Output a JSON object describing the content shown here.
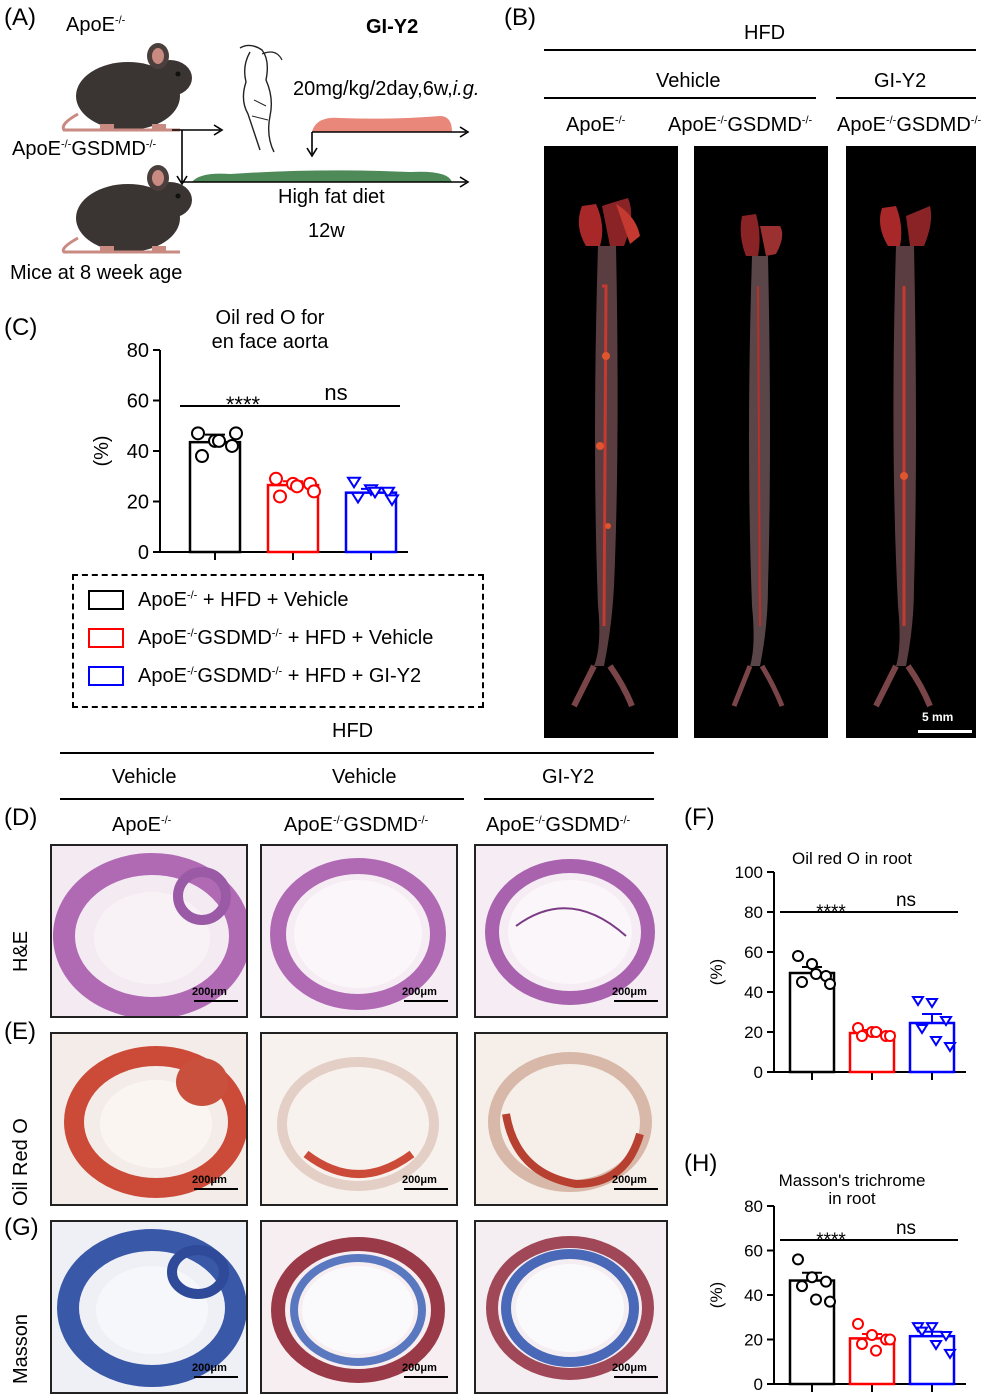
{
  "panels": {
    "A": {
      "label": "(A)",
      "mouse_top": "ApoE",
      "mouse_bottom": "ApoE",
      "mouse_bottom_gene": "GSDMD",
      "ko_sup": "-/-",
      "drug_name": "GI-Y2",
      "dosing": "20mg/kg/2day,6w,",
      "route": "i.g.",
      "diet": "High fat diet",
      "diet_duration": "12w",
      "age": "Mice at 8 week age",
      "colors": {
        "drug_bar": "#e8877a",
        "diet_bar": "#4e8a58",
        "mouse": "#3a3432"
      }
    },
    "B": {
      "label": "(B)",
      "top_header": "HFD",
      "group_vehicle": "Vehicle",
      "group_drug": "GI-Y2",
      "col1": "ApoE",
      "col2a": "ApoE",
      "col2b": "GSDMD",
      "col3a": "ApoE",
      "col3b": "GSDMD",
      "sup": "-/-",
      "scalebar": "5 mm"
    },
    "D_E_G_header": {
      "top_header": "HFD",
      "vehicle1": "Vehicle",
      "vehicle2": "Vehicle",
      "drug": "GI-Y2",
      "col1": "ApoE",
      "col2a": "ApoE",
      "col2b": "GSDMD",
      "col3a": "ApoE",
      "col3b": "GSDMD",
      "sup": "-/-"
    },
    "D": {
      "label": "(D)",
      "row": "H&E"
    },
    "E": {
      "label": "(E)",
      "row": "Oil Red O"
    },
    "G": {
      "label": "(G)",
      "row": "Masson"
    },
    "scale_label": "200μm",
    "F": {
      "label": "(F)"
    },
    "H": {
      "label": "(H)"
    },
    "C": {
      "label": "(C)"
    }
  },
  "legend": [
    {
      "a": "ApoE",
      "sup1": "-/-",
      "b": "",
      "sup2": "",
      "rest": " + HFD + Vehicle",
      "color": "#000000"
    },
    {
      "a": "ApoE",
      "sup1": "-/-",
      "b": "GSDMD",
      "sup2": "-/-",
      "rest": " + HFD + Vehicle",
      "color": "#ff0000"
    },
    {
      "a": "ApoE",
      "sup1": "-/-",
      "b": "GSDMD",
      "sup2": "-/-",
      "rest": " + HFD + GI-Y2",
      "color": "#0000ff"
    }
  ],
  "chart_data": [
    {
      "id": "C",
      "type": "bar",
      "title": "Oil red O for\nen face aorta",
      "ylabel": "(%)",
      "ylim": [
        0,
        80
      ],
      "yticks": [
        0,
        20,
        40,
        60,
        80
      ],
      "values": [
        43.5,
        26.5,
        23.5
      ],
      "errors": [
        3.0,
        1.5,
        1.5
      ],
      "colors": [
        "#000000",
        "#ff0000",
        "#0000ff"
      ],
      "markers": [
        "circle",
        "circle",
        "triangle"
      ],
      "points": [
        [
          47,
          44,
          42,
          38,
          44,
          47
        ],
        [
          29,
          27,
          27,
          22,
          26,
          24
        ],
        [
          28,
          25,
          24,
          22,
          24,
          21
        ]
      ],
      "sig": [
        {
          "text": "****",
          "from": 0,
          "to": 1
        },
        {
          "text": "ns",
          "from": 1,
          "to": 2
        }
      ]
    },
    {
      "id": "F",
      "type": "bar",
      "title": "Oil red O in root",
      "ylabel": "(%)",
      "ylim": [
        0,
        100
      ],
      "yticks": [
        0,
        20,
        40,
        60,
        80,
        100
      ],
      "values": [
        49.5,
        19.5,
        24.5
      ],
      "errors": [
        3.0,
        1.5,
        4.5
      ],
      "colors": [
        "#000000",
        "#ff0000",
        "#0000ff"
      ],
      "markers": [
        "circle",
        "circle",
        "triangle"
      ],
      "points": [
        [
          58,
          54,
          48,
          45,
          49,
          44
        ],
        [
          22,
          20,
          18,
          18,
          20,
          18
        ],
        [
          36,
          35,
          26,
          22,
          16,
          13
        ]
      ],
      "sig": [
        {
          "text": "****",
          "from": 0,
          "to": 1
        },
        {
          "text": "ns",
          "from": 1,
          "to": 2
        }
      ]
    },
    {
      "id": "H",
      "type": "bar",
      "title": "Masson's trichrome\nin root",
      "ylabel": "(%)",
      "ylim": [
        0,
        80
      ],
      "yticks": [
        0,
        20,
        40,
        60,
        80
      ],
      "values": [
        46.5,
        20.5,
        21.5
      ],
      "errors": [
        3.5,
        2.0,
        2.0
      ],
      "colors": [
        "#000000",
        "#ff0000",
        "#0000ff"
      ],
      "markers": [
        "circle",
        "circle",
        "triangle"
      ],
      "points": [
        [
          56,
          48,
          46,
          44,
          38,
          37
        ],
        [
          27,
          22,
          20,
          18,
          15,
          20
        ],
        [
          26,
          26,
          22,
          24,
          18,
          14
        ]
      ],
      "sig": [
        {
          "text": "****",
          "from": 0,
          "to": 1
        },
        {
          "text": "ns",
          "from": 1,
          "to": 2
        }
      ]
    }
  ]
}
